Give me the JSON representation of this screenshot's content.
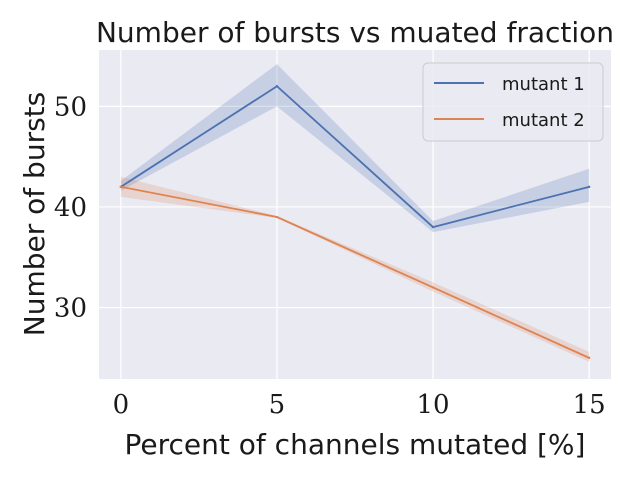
{
  "chart_data": {
    "type": "line",
    "title": "Number of bursts vs muated fraction",
    "xlabel": "Percent of channels mutated [%]",
    "ylabel": "Number of bursts",
    "x": [
      0,
      5,
      10,
      15
    ],
    "xticks": [
      0,
      5,
      10,
      15
    ],
    "yticks": [
      30,
      40,
      50
    ],
    "xlim": [
      -0.7,
      15.7
    ],
    "ylim": [
      22.9,
      55.6
    ],
    "grid": true,
    "legend_position": "top-right",
    "series": [
      {
        "name": "mutant 1",
        "color": "#4c72b0",
        "values": [
          42,
          52,
          38,
          42
        ],
        "ci_lower": [
          41.6,
          50.0,
          37.5,
          40.5
        ],
        "ci_upper": [
          42.6,
          54.2,
          38.6,
          43.8
        ]
      },
      {
        "name": "mutant 2",
        "color": "#dd8452",
        "values": [
          42,
          39,
          32,
          25
        ],
        "ci_lower": [
          41.0,
          38.9,
          31.6,
          24.6
        ],
        "ci_upper": [
          43.0,
          39.1,
          32.5,
          25.6
        ]
      }
    ]
  }
}
